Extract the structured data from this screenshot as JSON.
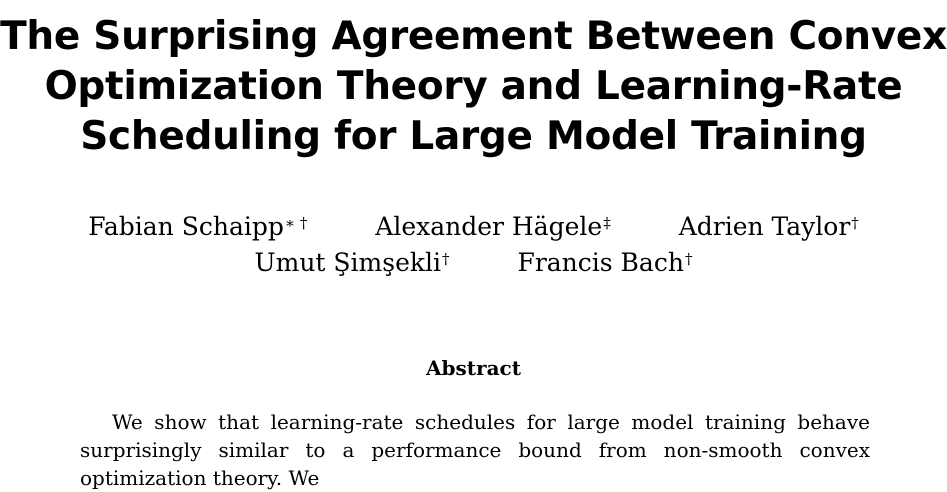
{
  "title_lines": [
    "The Surprising Agreement Between Convex",
    "Optimization Theory and Learning-Rate",
    "Scheduling for Large Model Training"
  ],
  "authors": {
    "row1": [
      {
        "name": "Fabian Schaipp",
        "mark": "∗ †"
      },
      {
        "name": "Alexander Hägele",
        "mark": "‡"
      },
      {
        "name": "Adrien Taylor",
        "mark": "†"
      }
    ],
    "row2": [
      {
        "name": "Umut Şimşekli",
        "mark": "†"
      },
      {
        "name": "Francis Bach",
        "mark": "†"
      }
    ]
  },
  "abstract": {
    "heading": "Abstract",
    "text": "We show that learning-rate schedules for large model training behave surprisingly similar to a performance bound from non-smooth convex optimization theory. We"
  }
}
